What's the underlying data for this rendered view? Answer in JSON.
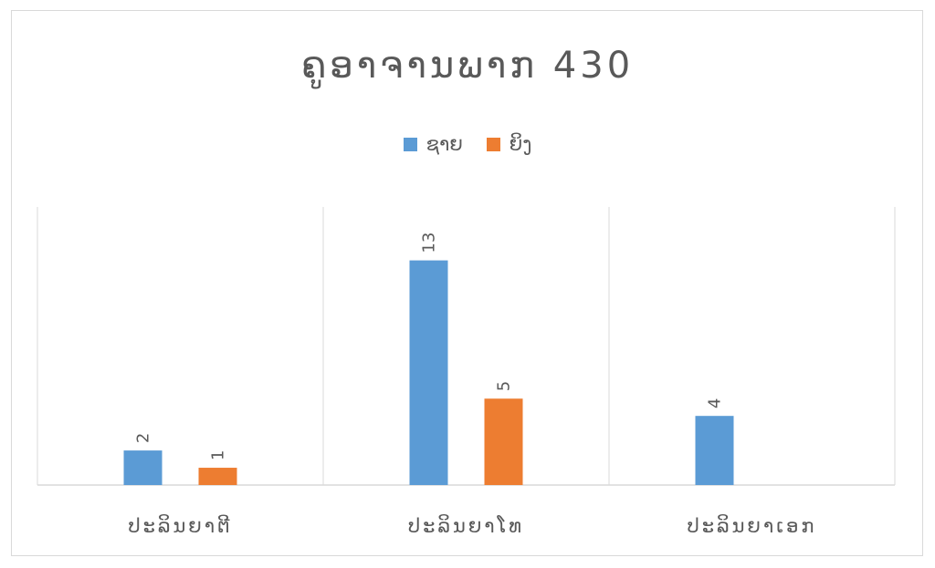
{
  "chart_data": {
    "type": "bar",
    "title": "ຄູອາຈານພາກ 430",
    "categories": [
      "ປະລິນຍາຕີ",
      "ປະລິນຍາໂທ",
      "ປະລິນຍາເອກ"
    ],
    "series": [
      {
        "name": "ຊາຍ",
        "color": "#5b9bd5",
        "values": [
          2,
          13,
          4
        ]
      },
      {
        "name": "ຍິງ",
        "color": "#ed7d31",
        "values": [
          1,
          5,
          null
        ]
      }
    ],
    "ylim": [
      0,
      14
    ],
    "legend_position": "top",
    "grid": false,
    "category_separators": true,
    "data_labels": true
  }
}
